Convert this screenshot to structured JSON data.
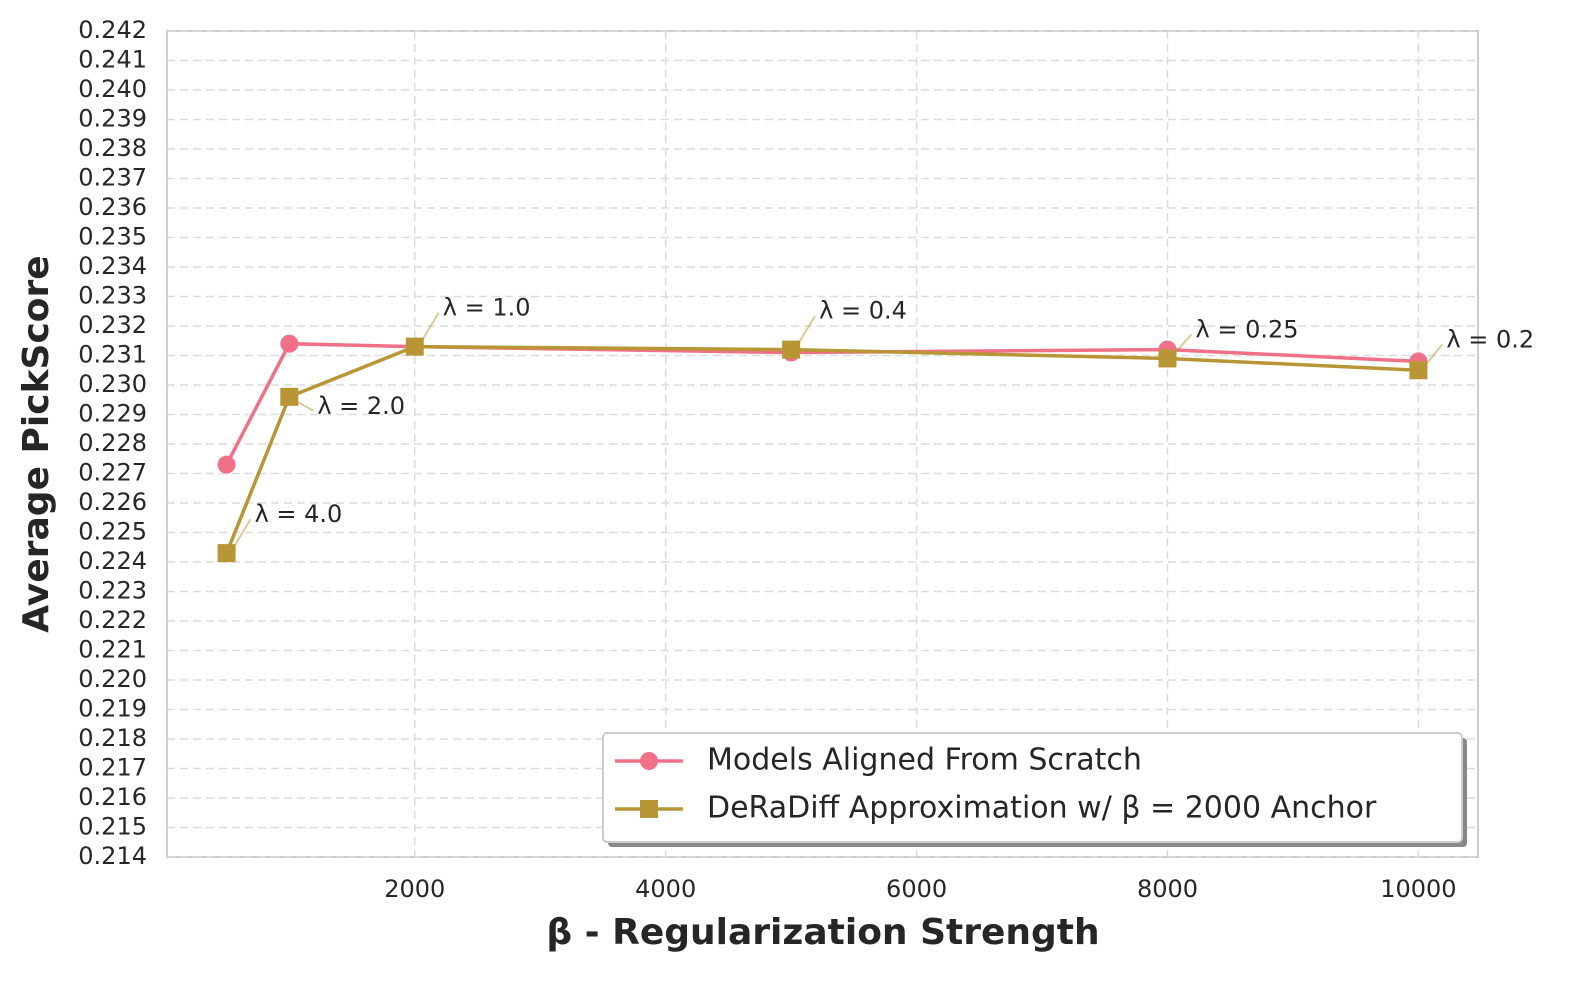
{
  "chart_data": {
    "type": "line",
    "xlabel": "β - Regularization Strength",
    "ylabel": "Average PickScore",
    "x": [
      500,
      1000,
      2000,
      5000,
      8000,
      10000
    ],
    "series": [
      {
        "name": "Models Aligned From Scratch",
        "color": "#f07088",
        "marker": "circle",
        "values": [
          0.2273,
          0.2314,
          0.2313,
          0.2311,
          0.2312,
          0.2308
        ]
      },
      {
        "name": "DeRaDiff Approximation w/ β = 2000 Anchor",
        "color": "#b89636",
        "marker": "square",
        "values": [
          0.2243,
          0.2296,
          0.2313,
          0.2312,
          0.2309,
          0.2305
        ]
      }
    ],
    "annotations": [
      "λ = 4.0",
      "λ = 2.0",
      "λ = 1.0",
      "λ = 0.4",
      "λ = 0.25",
      "λ = 0.2"
    ],
    "xlim": [
      25,
      10475
    ],
    "xticks": [
      2000,
      4000,
      6000,
      8000,
      10000
    ],
    "ylim": [
      0.214,
      0.242
    ],
    "yticks": [
      0.214,
      0.215,
      0.216,
      0.217,
      0.218,
      0.219,
      {
        "value": 0.22,
        "label": "0.220"
      },
      0.221,
      0.222,
      0.223,
      0.224,
      0.225,
      0.226,
      0.227,
      0.228,
      0.229,
      {
        "value": 0.23,
        "label": "0.230"
      },
      0.231,
      0.232,
      0.233,
      0.234,
      0.235,
      0.236,
      0.237,
      0.238,
      0.239,
      {
        "value": 0.24,
        "label": "0.240"
      },
      0.241,
      0.242
    ],
    "grid": true,
    "legend": "lower right"
  }
}
